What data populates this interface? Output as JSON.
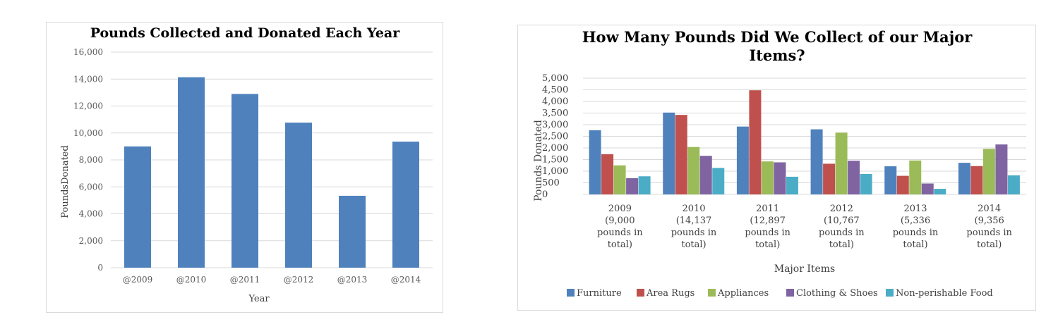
{
  "colors": {
    "bar_primary": "#4f81bd",
    "series": [
      "#4f81bd",
      "#c0504d",
      "#9bbb59",
      "#8064a2",
      "#4bacc6"
    ],
    "grid": "#d9d9d9",
    "text": "#404040"
  },
  "chart_data": [
    {
      "type": "bar",
      "title": "Pounds Collected and Donated Each Year",
      "xlabel": "Year",
      "ylabel": "PoundsDonated",
      "categories": [
        "@2009",
        "@2010",
        "@2011",
        "@2012",
        "@2013",
        "@2014"
      ],
      "values": [
        9000,
        14137,
        12897,
        10767,
        5336,
        9356
      ],
      "ylim": [
        0,
        16000
      ],
      "yticks": [
        "0",
        "2,000",
        "4,000",
        "6,000",
        "8,000",
        "10,000",
        "12,000",
        "14,000",
        "16,000"
      ],
      "grid": true,
      "legend": "none"
    },
    {
      "type": "bar",
      "title_lines": [
        "How Many Pounds Did We Collect of our Major",
        "Items?"
      ],
      "xlabel": "Major Items",
      "ylabel": "Pounds Donated",
      "category_lines": [
        [
          "2009",
          "(9,000",
          "pounds in",
          "total)"
        ],
        [
          "2010",
          "(14,137",
          "pounds in",
          "total)"
        ],
        [
          "2011",
          "(12,897",
          "pounds in",
          "total)"
        ],
        [
          "2012",
          "(10,767",
          "pounds in",
          "total)"
        ],
        [
          "2013",
          "(5,336",
          "pounds in",
          "total)"
        ],
        [
          "2014",
          "(9,356",
          "pounds in",
          "total)"
        ]
      ],
      "series": [
        {
          "name": "Furniture",
          "values": [
            2760,
            3520,
            2920,
            2800,
            1210,
            1360
          ]
        },
        {
          "name": "Area Rugs",
          "values": [
            1730,
            3420,
            4480,
            1320,
            800,
            1220
          ]
        },
        {
          "name": "Appliances",
          "values": [
            1250,
            2040,
            1420,
            2660,
            1460,
            1960
          ]
        },
        {
          "name": "Clothing & Shoes",
          "values": [
            700,
            1660,
            1380,
            1450,
            470,
            2150
          ]
        },
        {
          "name": "Non-perishable Food",
          "values": [
            780,
            1140,
            760,
            880,
            240,
            820
          ]
        }
      ],
      "ylim": [
        0,
        5000
      ],
      "yticks": [
        "0",
        "500",
        "1,000",
        "1,500",
        "2,000",
        "2,500",
        "3,000",
        "3,500",
        "4,000",
        "4,500",
        "5,000"
      ],
      "grid": true,
      "legend": "bottom"
    }
  ]
}
